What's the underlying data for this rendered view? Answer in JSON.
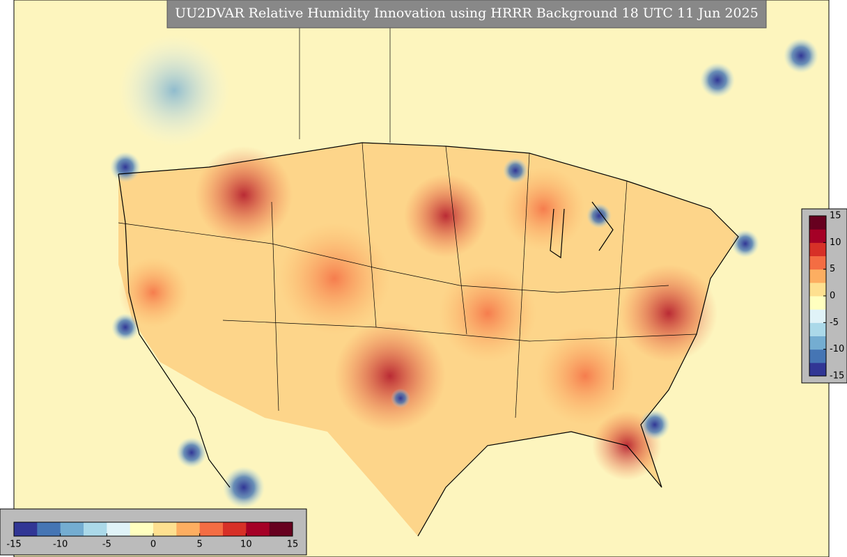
{
  "title": "UU2DVAR Relative Humidity Innovation using HRRR Background 18 UTC 11 Jun 2025",
  "colorbars": [
    {
      "orientation": "horizontal",
      "lim": [
        -15,
        15
      ],
      "ticks": [
        -15,
        -10,
        -5,
        0,
        5,
        10,
        15
      ],
      "colors": [
        "#313695",
        "#4575b4",
        "#74add1",
        "#abd9e9",
        "#e0f3f8",
        "#ffffbf",
        "#fee090",
        "#fdae61",
        "#f46d43",
        "#d73027",
        "#a50026",
        "#67001f"
      ]
    },
    {
      "orientation": "vertical",
      "lim": [
        -15,
        15
      ],
      "ticks": [
        -15,
        -10,
        -5,
        0,
        5,
        10,
        15
      ],
      "colors": [
        "#313695",
        "#4575b4",
        "#74add1",
        "#abd9e9",
        "#e0f3f8",
        "#ffffbf",
        "#fee090",
        "#fdae61",
        "#f46d43",
        "#d73027",
        "#a50026",
        "#67001f"
      ]
    }
  ]
}
